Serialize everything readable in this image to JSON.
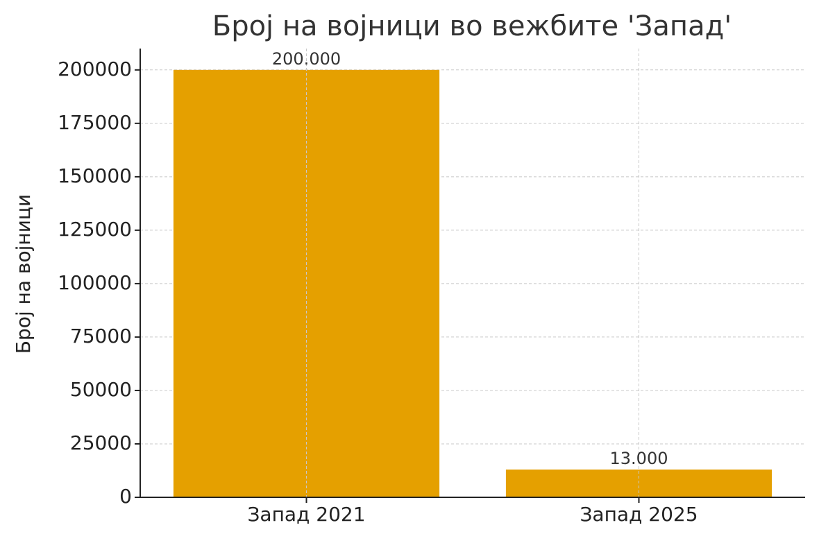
{
  "chart_data": {
    "type": "bar",
    "title": "Број на војници во вежбите 'Запад'",
    "y_label": "Број на војници",
    "categories": [
      "Запад 2021",
      "Запад 2025"
    ],
    "values": [
      200000,
      13000
    ],
    "value_labels": [
      "200.000",
      "13.000"
    ],
    "color": "#e5a000",
    "ylim": [
      0,
      210000
    ],
    "yticks": [
      0,
      25000,
      50000,
      75000,
      100000,
      125000,
      150000,
      175000,
      200000
    ],
    "grid": true
  }
}
